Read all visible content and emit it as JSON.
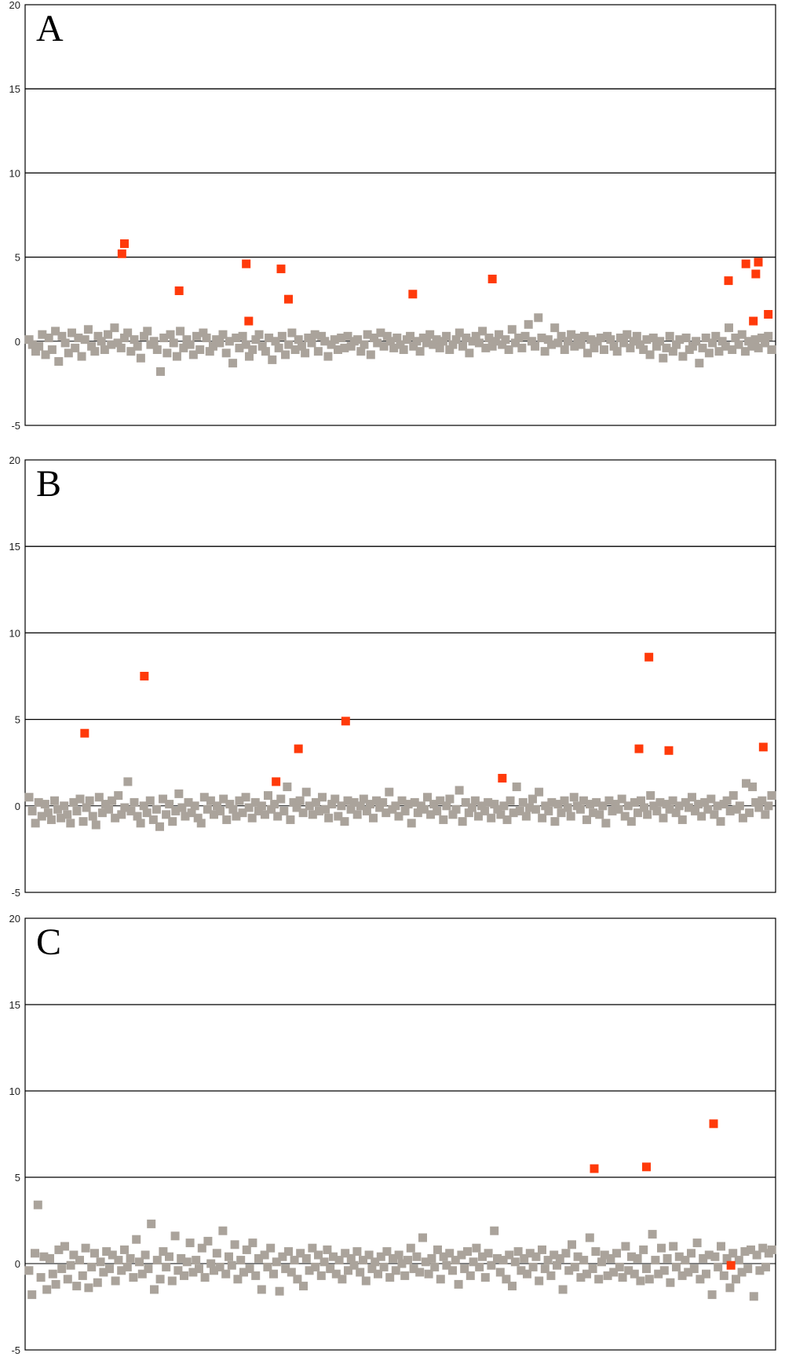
{
  "chart_data": [
    {
      "type": "scatter",
      "panel_label": "A",
      "ylim": [
        -5,
        20
      ],
      "yticks": [
        -5,
        0,
        5,
        10,
        15,
        20
      ],
      "xlim": [
        0,
        300
      ],
      "grid": true,
      "colors": {
        "background_points": "#aaa39b",
        "highlight_points": "#ff3a0a"
      },
      "highlight_points": [
        {
          "x": 38,
          "y": 5.2
        },
        {
          "x": 39,
          "y": 5.8
        },
        {
          "x": 61,
          "y": 3.0
        },
        {
          "x": 88,
          "y": 4.6
        },
        {
          "x": 89,
          "y": 1.2
        },
        {
          "x": 102,
          "y": 4.3
        },
        {
          "x": 105,
          "y": 2.5
        },
        {
          "x": 155,
          "y": 2.8
        },
        {
          "x": 187,
          "y": 3.7
        },
        {
          "x": 282,
          "y": 3.6
        },
        {
          "x": 289,
          "y": 4.6
        },
        {
          "x": 293,
          "y": 4.0
        },
        {
          "x": 294,
          "y": 4.7
        },
        {
          "x": 292,
          "y": 1.2
        },
        {
          "x": 298,
          "y": 1.6
        }
      ],
      "background_points": [
        0.1,
        -0.2,
        -0.6,
        -0.3,
        0.4,
        -0.8,
        0.2,
        -0.5,
        0.6,
        -1.2,
        0.3,
        -0.1,
        -0.7,
        0.5,
        -0.4,
        0.2,
        -0.9,
        0.1,
        0.7,
        -0.3,
        -0.6,
        0.3,
        0.0,
        -0.5,
        0.4,
        -0.2,
        0.8,
        -0.1,
        -0.4,
        0.2,
        0.5,
        -0.6,
        0.1,
        -0.3,
        -1.0,
        0.3,
        0.6,
        -0.2,
        0.0,
        -0.5,
        -1.8,
        0.2,
        -0.7,
        0.4,
        -0.1,
        -0.9,
        0.6,
        -0.4,
        0.1,
        -0.2,
        -0.8,
        0.3,
        -0.5,
        0.5,
        0.2,
        -0.6,
        -0.3,
        0.1,
        -0.1,
        0.4,
        -0.7,
        0.0,
        -1.3,
        0.2,
        -0.4,
        0.3,
        -0.2,
        -0.9,
        -0.5,
        0.1,
        0.4,
        -0.3,
        -0.6,
        0.2,
        -1.1,
        0.0,
        -0.4,
        0.3,
        -0.8,
        -0.2,
        0.5,
        -0.5,
        0.1,
        -0.3,
        -0.7,
        0.2,
        -0.1,
        0.4,
        -0.6,
        0.3,
        0.0,
        -0.9,
        -0.2,
        0.1,
        -0.5,
        0.2,
        -0.4,
        0.3,
        -0.3,
        0.0,
        0.1,
        -0.6,
        -0.2,
        0.4,
        -0.8,
        0.2,
        -0.1,
        0.5,
        -0.3,
        0.3,
        0.0,
        -0.4,
        0.2,
        -0.2,
        -0.5,
        0.1,
        0.3,
        -0.3,
        0.0,
        -0.6,
        0.2,
        -0.1,
        0.4,
        -0.2,
        0.1,
        -0.4,
        0.0,
        0.3,
        -0.5,
        -0.2,
        0.1,
        0.5,
        -0.3,
        0.2,
        -0.7,
        0.0,
        0.3,
        -0.1,
        0.6,
        -0.4,
        0.2,
        -0.3,
        0.0,
        0.4,
        -0.2,
        0.1,
        -0.5,
        0.7,
        -0.1,
        0.2,
        -0.4,
        0.3,
        1.0,
        0.0,
        -0.3,
        1.4,
        0.2,
        -0.6,
        0.1,
        -0.2,
        0.8,
        -0.1,
        0.3,
        -0.5,
        0.0,
        0.4,
        -0.3,
        0.2,
        -0.2,
        0.3,
        -0.7,
        0.1,
        -0.4,
        0.0,
        0.2,
        -0.5,
        0.3,
        0.1,
        -0.3,
        -0.6,
        0.2,
        -0.1,
        0.4,
        -0.4,
        0.0,
        0.3,
        -0.2,
        -0.5,
        0.1,
        -0.8,
        0.2,
        -0.3,
        0.0,
        -1.0,
        -0.4,
        0.3,
        -0.6,
        -0.2,
        0.1,
        -0.9,
        0.2,
        -0.5,
        -0.3,
        0.0,
        -1.3,
        -0.4,
        0.2,
        -0.7,
        -0.1,
        0.3,
        -0.6,
        0.0,
        -0.3,
        0.8,
        -0.5,
        0.2,
        -0.2,
        0.4,
        -0.6,
        0.0,
        -0.3,
        0.1,
        -0.4,
        0.2,
        -0.1,
        0.3,
        -0.5
      ]
    },
    {
      "type": "scatter",
      "panel_label": "B",
      "ylim": [
        -5,
        20
      ],
      "yticks": [
        -5,
        0,
        5,
        10,
        15,
        20
      ],
      "xlim": [
        0,
        300
      ],
      "grid": true,
      "colors": {
        "background_points": "#aaa39b",
        "highlight_points": "#ff3a0a"
      },
      "highlight_points": [
        {
          "x": 23,
          "y": 4.2
        },
        {
          "x": 47,
          "y": 7.5
        },
        {
          "x": 100,
          "y": 1.4
        },
        {
          "x": 109,
          "y": 3.3
        },
        {
          "x": 128,
          "y": 4.9
        },
        {
          "x": 191,
          "y": 1.6
        },
        {
          "x": 246,
          "y": 3.3
        },
        {
          "x": 250,
          "y": 8.6
        },
        {
          "x": 258,
          "y": 3.2
        },
        {
          "x": 296,
          "y": 3.4
        }
      ],
      "background_points": [
        0.5,
        -0.3,
        -1.0,
        0.2,
        -0.6,
        0.1,
        -0.4,
        -0.8,
        0.3,
        -0.2,
        -0.7,
        0.0,
        -0.5,
        -1.0,
        0.2,
        -0.3,
        0.4,
        -0.9,
        -0.1,
        0.3,
        -0.6,
        -1.1,
        0.5,
        -0.4,
        0.1,
        -0.2,
        0.3,
        -0.7,
        0.6,
        -0.5,
        -0.1,
        1.4,
        -0.3,
        0.2,
        -0.6,
        -1.0,
        0.0,
        -0.4,
        0.3,
        -0.8,
        -0.2,
        -1.2,
        0.4,
        -0.5,
        0.1,
        -0.9,
        -0.3,
        0.7,
        -0.1,
        -0.6,
        0.2,
        -0.4,
        0.0,
        -0.7,
        -1.0,
        0.5,
        -0.2,
        0.3,
        -0.5,
        0.0,
        -0.3,
        0.4,
        -0.8,
        0.1,
        -0.2,
        -0.6,
        0.3,
        -0.4,
        0.5,
        -0.1,
        -0.7,
        0.2,
        -0.3,
        0.0,
        -0.5,
        0.6,
        -0.2,
        0.1,
        -0.6,
        0.4,
        -0.3,
        1.1,
        -0.8,
        0.2,
        -0.1,
        0.3,
        -0.4,
        0.8,
        0.0,
        -0.5,
        0.2,
        -0.3,
        0.5,
        -0.2,
        -0.7,
        0.1,
        0.4,
        -0.6,
        0.0,
        -0.9,
        0.3,
        -0.2,
        0.2,
        -0.5,
        0.0,
        0.4,
        -0.3,
        0.1,
        -0.7,
        0.3,
        -0.1,
        0.2,
        -0.4,
        0.8,
        -0.2,
        0.0,
        -0.6,
        0.3,
        -0.3,
        0.1,
        -1.0,
        0.2,
        -0.4,
        0.0,
        -0.2,
        0.5,
        -0.5,
        0.1,
        -0.3,
        0.3,
        -0.8,
        0.0,
        0.4,
        -0.5,
        -0.2,
        0.9,
        -0.9,
        0.2,
        -0.4,
        -0.1,
        0.3,
        -0.6,
        0.0,
        -0.3,
        0.2,
        -0.7,
        0.1,
        -0.2,
        -0.5,
        0.0,
        -0.8,
        0.3,
        -0.4,
        1.1,
        -0.3,
        0.2,
        -0.6,
        -0.1,
        0.4,
        -0.2,
        0.8,
        -0.7,
        0.0,
        -0.3,
        0.2,
        -0.9,
        0.1,
        -0.4,
        0.3,
        -0.1,
        -0.6,
        0.5,
        0.0,
        -0.2,
        0.3,
        -0.8,
        0.1,
        -0.4,
        0.2,
        -0.5,
        0.0,
        -1.0,
        0.3,
        -0.3,
        0.1,
        -0.2,
        0.4,
        -0.6,
        0.0,
        -0.9,
        0.2,
        -0.4,
        0.3,
        -0.1,
        -0.5,
        0.6,
        0.0,
        -0.3,
        0.2,
        -0.7,
        0.1,
        -0.2,
        0.3,
        -0.4,
        0.0,
        -0.8,
        0.2,
        -0.1,
        0.5,
        -0.3,
        0.1,
        -0.6,
        0.2,
        -0.2,
        0.4,
        -0.5,
        0.0,
        -0.9,
        0.1,
        0.3,
        -0.3,
        0.6,
        -0.2,
        0.0,
        -0.7,
        1.3,
        -0.4,
        1.1,
        0.2,
        -0.1,
        0.3,
        -0.5,
        0.0,
        0.6
      ]
    },
    {
      "type": "scatter",
      "panel_label": "C",
      "ylim": [
        -5,
        20
      ],
      "yticks": [
        -5,
        0,
        5,
        10,
        15,
        20
      ],
      "xlim": [
        0,
        300
      ],
      "grid": true,
      "colors": {
        "background_points": "#aaa39b",
        "highlight_points": "#ff3a0a"
      },
      "highlight_points": [
        {
          "x": 228,
          "y": 5.5
        },
        {
          "x": 249,
          "y": 5.6
        },
        {
          "x": 276,
          "y": 8.1
        },
        {
          "x": 283,
          "y": -0.1
        }
      ],
      "background_points": [
        -0.4,
        -1.8,
        0.6,
        3.4,
        -0.8,
        0.4,
        -1.5,
        0.3,
        -0.6,
        -1.2,
        0.8,
        -0.3,
        1.0,
        -0.9,
        -0.1,
        0.5,
        -1.3,
        0.2,
        -0.7,
        0.9,
        -1.4,
        -0.2,
        0.6,
        -1.1,
        0.1,
        -0.5,
        0.7,
        -0.3,
        0.5,
        -1.0,
        0.2,
        -0.4,
        0.8,
        -0.2,
        0.3,
        -0.8,
        1.4,
        0.1,
        -0.6,
        0.5,
        -0.3,
        2.3,
        -1.5,
        0.2,
        -0.9,
        0.7,
        -0.2,
        0.4,
        -1.0,
        1.6,
        -0.4,
        0.3,
        -0.7,
        0.1,
        1.2,
        -0.5,
        0.2,
        -0.3,
        0.9,
        -0.8,
        1.3,
        0.0,
        -0.4,
        0.6,
        -0.2,
        1.9,
        -0.6,
        0.4,
        -0.1,
        1.1,
        -0.9,
        0.2,
        -0.5,
        0.8,
        -0.3,
        1.2,
        -0.7,
        0.3,
        -1.5,
        0.5,
        -0.2,
        0.9,
        -0.6,
        0.1,
        -1.6,
        0.4,
        -0.3,
        0.7,
        -0.5,
        0.2,
        -0.9,
        0.6,
        -1.3,
        0.3,
        -0.4,
        0.9,
        -0.2,
        0.5,
        -0.7,
        0.1,
        0.8,
        -0.3,
        0.4,
        -0.6,
        0.2,
        -0.9,
        0.6,
        -0.4,
        0.3,
        -0.1,
        0.7,
        -0.5,
        0.2,
        -1.0,
        0.5,
        -0.3,
        0.1,
        -0.6,
        0.4,
        -0.2,
        0.7,
        -0.8,
        0.3,
        -0.4,
        0.5,
        0.0,
        -0.7,
        0.2,
        0.9,
        -0.3,
        0.4,
        -0.5,
        1.5,
        0.1,
        -0.6,
        0.3,
        -0.2,
        0.8,
        -0.9,
        0.4,
        -0.1,
        0.6,
        -0.4,
        0.2,
        -1.2,
        0.5,
        -0.3,
        0.7,
        -0.7,
        0.1,
        0.9,
        -0.2,
        0.4,
        -0.8,
        0.6,
        -0.1,
        1.9,
        0.3,
        -0.5,
        0.2,
        -0.9,
        0.5,
        -1.3,
        0.1,
        0.7,
        -0.4,
        0.3,
        -0.6,
        0.6,
        -0.2,
        0.4,
        -1.0,
        0.8,
        -0.3,
        0.2,
        -0.7,
        0.5,
        -0.1,
        0.3,
        -1.5,
        0.6,
        -0.4,
        1.1,
        -0.2,
        0.4,
        -0.8,
        0.2,
        -0.6,
        1.5,
        -0.3,
        0.7,
        -0.9,
        0.1,
        0.5,
        -0.7,
        0.3,
        -0.5,
        0.6,
        -0.2,
        -0.8,
        1.0,
        -0.4,
        0.4,
        -0.6,
        0.3,
        -1.0,
        0.8,
        -0.3,
        -0.9,
        1.7,
        0.2,
        -0.6,
        0.9,
        -0.4,
        0.3,
        -1.1,
        1.0,
        -0.2,
        0.4,
        -0.7,
        0.2,
        -0.5,
        0.6,
        -0.3,
        1.2,
        -0.9,
        0.3,
        -0.6,
        0.5,
        -1.8,
        0.4,
        -0.2,
        1.0,
        -0.7,
        0.3,
        -1.4,
        0.6,
        -0.9,
        0.2,
        -0.5,
        0.7,
        -0.3,
        0.8,
        -1.9,
        0.5,
        -0.4,
        0.9,
        -0.2,
        0.6,
        0.8
      ]
    }
  ]
}
